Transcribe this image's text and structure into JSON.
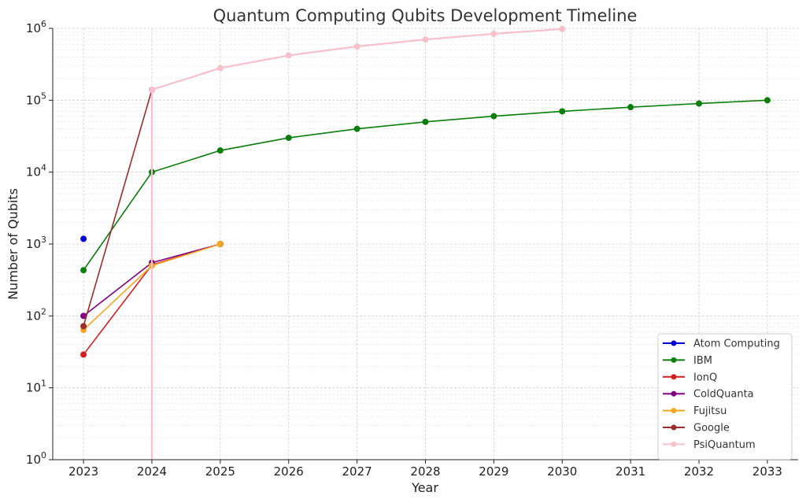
{
  "chart_data": {
    "type": "line",
    "title": "Quantum Computing Qubits Development Timeline",
    "xlabel": "Year",
    "ylabel": "Number of Qubits",
    "yscale": "log",
    "xlim": [
      2022.55,
      2033.45
    ],
    "ylim": [
      1,
      1000000
    ],
    "xticks": [
      "2023",
      "2024",
      "2025",
      "2026",
      "2027",
      "2028",
      "2029",
      "2030",
      "2031",
      "2032",
      "2033"
    ],
    "yticks": [
      {
        "base": "10",
        "exp": "0",
        "value": 1
      },
      {
        "base": "10",
        "exp": "1",
        "value": 10
      },
      {
        "base": "10",
        "exp": "2",
        "value": 100
      },
      {
        "base": "10",
        "exp": "3",
        "value": 1000
      },
      {
        "base": "10",
        "exp": "4",
        "value": 10000
      },
      {
        "base": "10",
        "exp": "5",
        "value": 100000
      },
      {
        "base": "10",
        "exp": "6",
        "value": 1000000
      }
    ],
    "grid": true,
    "legend_position": "lower-right",
    "series": [
      {
        "name": "Atom Computing",
        "color": "#0000cc",
        "x": [
          2023
        ],
        "y": [
          1180
        ]
      },
      {
        "name": "IBM",
        "color": "#0a7d0a",
        "x": [
          2023,
          2024,
          2025,
          2026,
          2027,
          2028,
          2029,
          2030,
          2031,
          2032,
          2033
        ],
        "y": [
          433,
          10000,
          20000,
          30000,
          40000,
          50000,
          60000,
          70000,
          80000,
          90000,
          100000
        ]
      },
      {
        "name": "IonQ",
        "color": "#d21f1f",
        "x": [
          2023,
          2024,
          2025
        ],
        "y": [
          29,
          512,
          1000
        ]
      },
      {
        "name": "ColdQuanta",
        "color": "#800080",
        "x": [
          2023,
          2024,
          2025
        ],
        "y": [
          100,
          550,
          1000
        ]
      },
      {
        "name": "Fujitsu",
        "color": "#f5a623",
        "x": [
          2023,
          2024,
          2025
        ],
        "y": [
          64,
          500,
          1000
        ]
      },
      {
        "name": "Google",
        "color": "#9b2d2d",
        "x": [
          2023,
          2024
        ],
        "y": [
          72,
          140000
        ]
      },
      {
        "name": "PsiQuantum",
        "color": "#f7c0cb",
        "x": [
          2024,
          2024,
          2025,
          2026,
          2027,
          2028,
          2029,
          2030
        ],
        "y": [
          1,
          140000,
          280000,
          420000,
          560000,
          700000,
          840000,
          980000
        ]
      }
    ]
  }
}
